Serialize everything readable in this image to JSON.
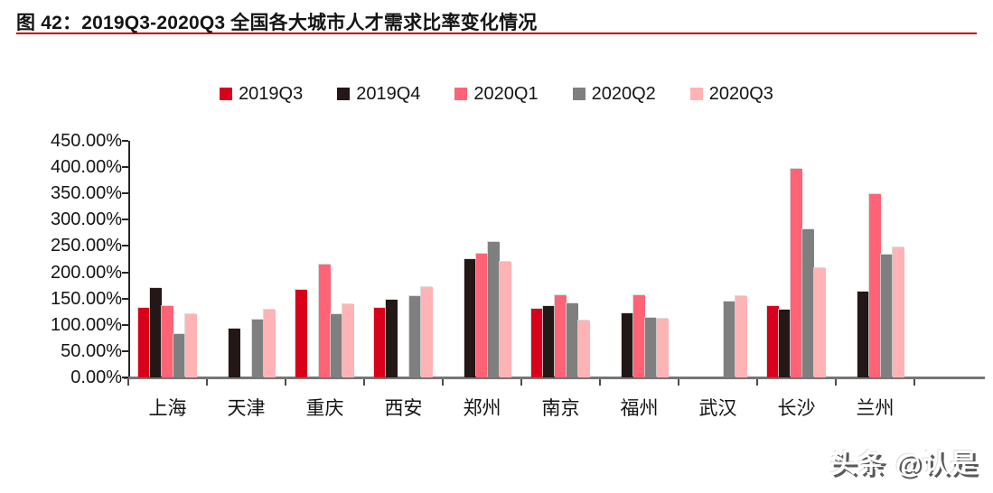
{
  "header": {
    "title": "图 42：2019Q3-2020Q3 全国各大城市人才需求比率变化情况"
  },
  "watermark": {
    "text": "头条 @认是"
  },
  "colors": {
    "title_rule": "#bf0000",
    "x_axis_line": "#767676",
    "y_axis_line": "#262626",
    "text": "#141414"
  },
  "chart_data": {
    "type": "bar",
    "title": "2019Q3-2020Q3 全国各大城市人才需求比率变化情况",
    "categories": [
      "上海",
      "天津",
      "重庆",
      "西安",
      "郑州",
      "南京",
      "福州",
      "武汉",
      "长沙",
      "兰州"
    ],
    "series": [
      {
        "name": "2019Q3",
        "color": "#d9001b",
        "values": [
          132,
          null,
          166,
          133,
          null,
          130,
          null,
          null,
          135,
          null
        ]
      },
      {
        "name": "2019Q4",
        "color": "#231815",
        "values": [
          170,
          92,
          null,
          148,
          225,
          136,
          122,
          null,
          128,
          163
        ]
      },
      {
        "name": "2020Q1",
        "color": "#ff6375",
        "values": [
          135,
          null,
          214,
          null,
          236,
          156,
          157,
          null,
          397,
          349
        ]
      },
      {
        "name": "2020Q2",
        "color": "#7f7f7f",
        "values": [
          82,
          110,
          121,
          154,
          258,
          140,
          113,
          144,
          282,
          234
        ]
      },
      {
        "name": "2020Q3",
        "color": "#ffb3b5",
        "values": [
          121,
          129,
          139,
          172,
          219,
          109,
          111,
          155,
          208,
          247
        ]
      }
    ],
    "ylabel": "",
    "xlabel": "",
    "ylim": [
      0,
      450
    ],
    "ytick_step": 50,
    "ytick_format": "0.00%",
    "grid": false,
    "legend_position": "top-center"
  }
}
